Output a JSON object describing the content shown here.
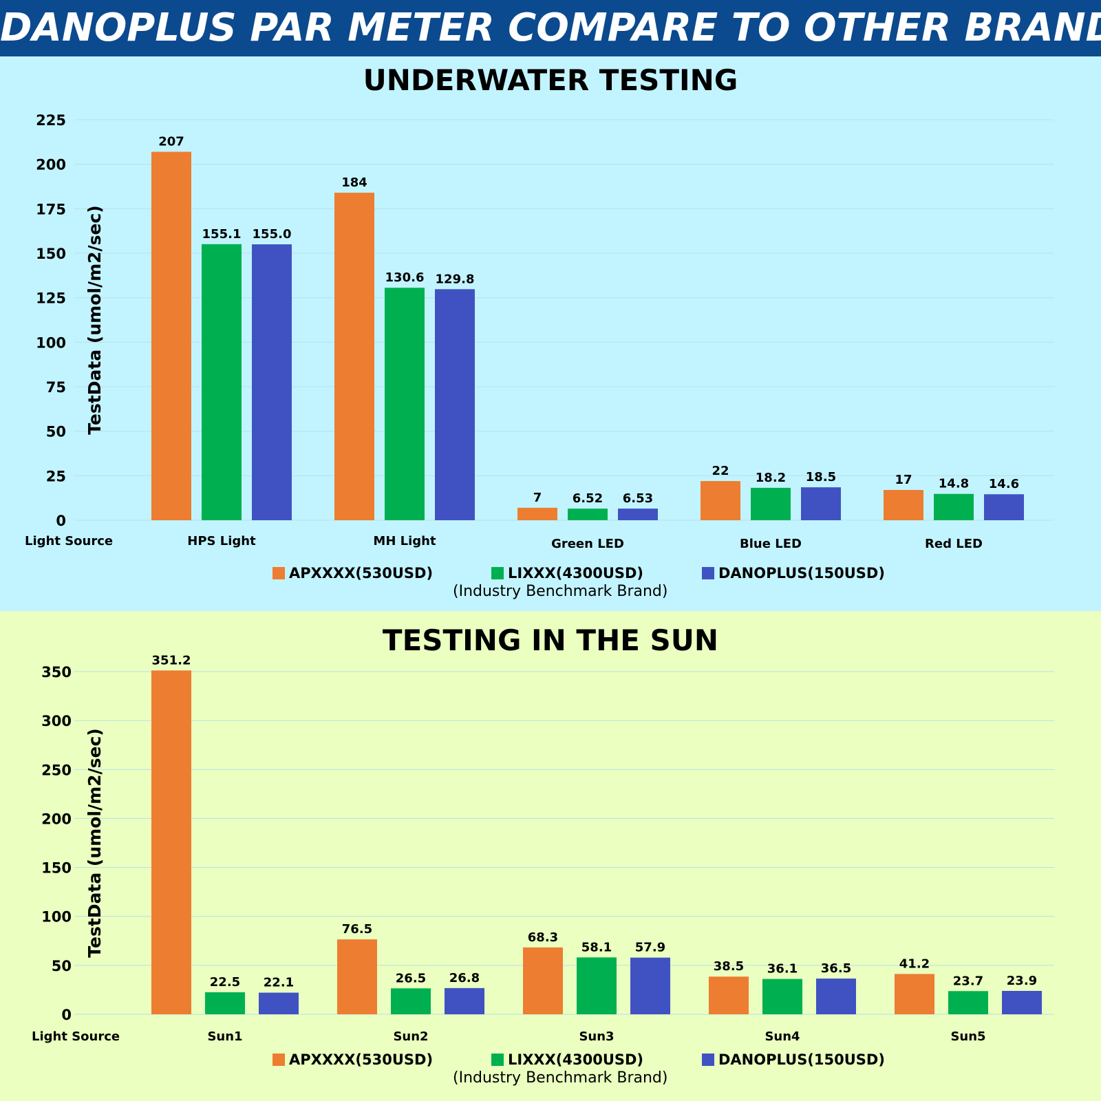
{
  "banner": {
    "title": "DANOPLUS PAR METER COMPARE TO OTHER BRANDS"
  },
  "colors": {
    "banner_bg": "#0b4a8e",
    "water_bg": "#c2f4ff",
    "sun_bg": "#eaffc0",
    "apxxxx": "#ed7d31",
    "lixxx": "#00b050",
    "danoplus": "#4052c2"
  },
  "legend": {
    "items": [
      {
        "label": "APXXXX(530USD)",
        "color": "#ed7d31"
      },
      {
        "label": "LIXXX(4300USD)",
        "color": "#00b050"
      },
      {
        "label": "DANOPLUS(150USD)",
        "color": "#4052c2"
      }
    ],
    "note": "(Industry Benchmark Brand)"
  },
  "chart_data": [
    {
      "type": "bar",
      "title": "UNDERWATER TESTING",
      "ylabel": "TestData (umol/m2/sec)",
      "xlabel": "Light Source",
      "ylim": [
        0,
        225
      ],
      "yticks": [
        0,
        25,
        50,
        75,
        100,
        125,
        150,
        175,
        200,
        225
      ],
      "grid": true,
      "categories": [
        "HPS Light",
        "MH Light",
        "Green LED",
        "Blue LED",
        "Red LED"
      ],
      "series": [
        {
          "name": "APXXXX(530USD)",
          "values": [
            207,
            184,
            7,
            22,
            17
          ],
          "labels": [
            "207",
            "184",
            "7",
            "22",
            "17"
          ]
        },
        {
          "name": "LIXXX(4300USD)",
          "values": [
            155.1,
            130.6,
            6.52,
            18.2,
            14.8
          ],
          "labels": [
            "155.1",
            "130.6",
            "6.52",
            "18.2",
            "14.8"
          ]
        },
        {
          "name": "DANOPLUS(150USD)",
          "values": [
            155.0,
            129.8,
            6.53,
            18.5,
            14.6
          ],
          "labels": [
            "155.0",
            "129.8",
            "6.53",
            "18.5",
            "14.6"
          ]
        }
      ]
    },
    {
      "type": "bar",
      "title": "TESTING IN THE  SUN",
      "ylabel": "TestData (umol/m2/sec)",
      "xlabel": "Light Source",
      "ylim": [
        0,
        350
      ],
      "yticks": [
        0,
        50,
        100,
        150,
        200,
        250,
        300,
        350
      ],
      "grid": true,
      "categories": [
        "Sun1",
        "Sun2",
        "Sun3",
        "Sun4",
        "Sun5"
      ],
      "series": [
        {
          "name": "APXXXX(530USD)",
          "values": [
            351.2,
            76.5,
            68.3,
            38.5,
            41.2
          ],
          "labels": [
            "351.2",
            "76.5",
            "68.3",
            "38.5",
            "41.2"
          ]
        },
        {
          "name": "LIXXX(4300USD)",
          "values": [
            22.5,
            26.5,
            58.1,
            36.1,
            23.7
          ],
          "labels": [
            "22.5",
            "26.5",
            "58.1",
            "36.1",
            "23.7"
          ]
        },
        {
          "name": "DANOPLUS(150USD)",
          "values": [
            22.1,
            26.8,
            57.9,
            36.5,
            23.9
          ],
          "labels": [
            "22.1",
            "26.8",
            "57.9",
            "36.5",
            "23.9"
          ]
        }
      ]
    }
  ]
}
